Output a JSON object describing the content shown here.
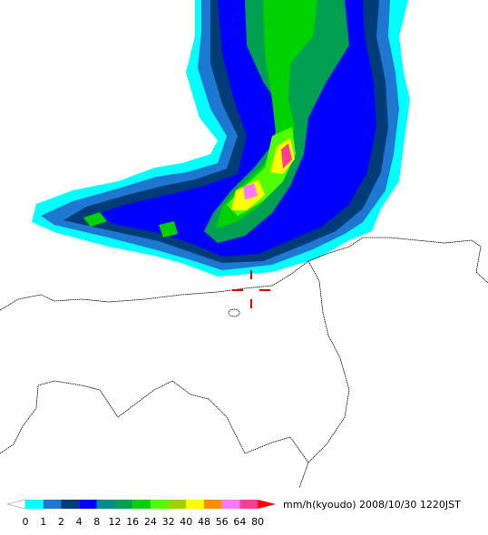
{
  "legend": {
    "levels": [
      0,
      1,
      2,
      4,
      8,
      12,
      16,
      24,
      32,
      40,
      48,
      56,
      64,
      80
    ],
    "colors": [
      "#00ffff",
      "#1e78d2",
      "#003c78",
      "#0000ff",
      "#008c8c",
      "#00a050",
      "#00d200",
      "#50ff00",
      "#a0d200",
      "#ffff00",
      "#ff8c00",
      "#ff78ff",
      "#ff3c96"
    ],
    "under_color": "#ffffff",
    "over_color": "#ff0000",
    "unit": "mm/h(kyoudo)",
    "timestamp": "2008/10/30 1220JST"
  }
}
